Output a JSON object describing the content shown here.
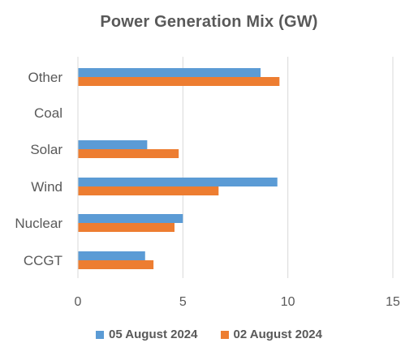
{
  "chart_data": {
    "type": "bar",
    "orientation": "horizontal",
    "title": "Power Generation Mix (GW)",
    "categories": [
      "Other",
      "Coal",
      "Solar",
      "Wind",
      "Nuclear",
      "CCGT"
    ],
    "series": [
      {
        "name": "05 August 2024",
        "color": "#5B9BD5",
        "values": [
          8.7,
          0,
          3.3,
          9.5,
          5.0,
          3.2
        ]
      },
      {
        "name": "02 August 2024",
        "color": "#ED7D31",
        "values": [
          9.6,
          0,
          4.8,
          6.7,
          4.6,
          3.6
        ]
      }
    ],
    "xlim": [
      0,
      15
    ],
    "x_ticks": [
      0,
      5,
      10,
      15
    ],
    "grid": true,
    "legend_position": "bottom"
  }
}
